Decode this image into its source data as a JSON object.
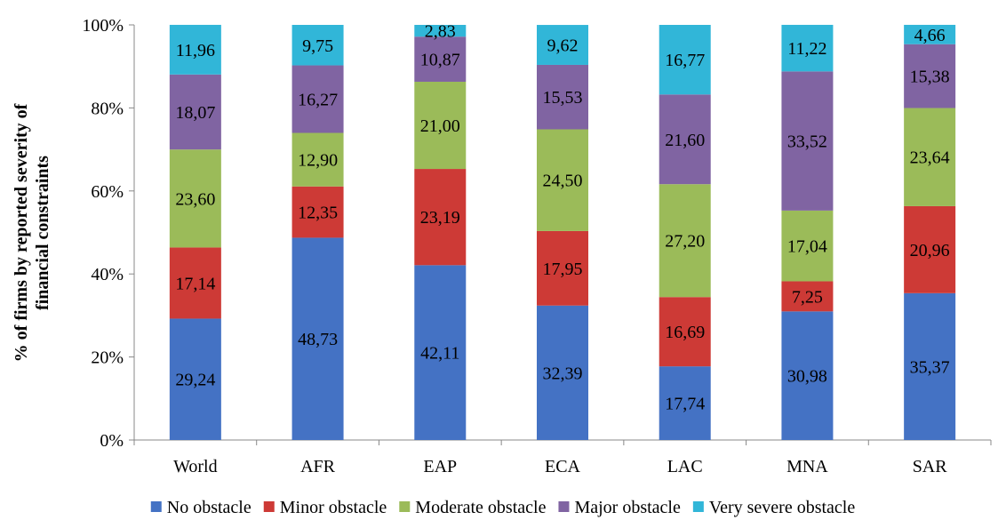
{
  "chart_data": {
    "type": "bar",
    "stacked": true,
    "ylabel_lines": [
      "% of firms by reported severity of",
      "financial  constraints"
    ],
    "xlabel": "",
    "ylim": [
      0,
      100
    ],
    "y_ticks": [
      "0%",
      "20%",
      "40%",
      "60%",
      "80%",
      "100%"
    ],
    "categories": [
      "World",
      "AFR",
      "EAP",
      "ECA",
      "LAC",
      "MNA",
      "SAR"
    ],
    "legend_position": "bottom",
    "series": [
      {
        "name": "No obstacle",
        "color": "#4472C4",
        "values": [
          29.24,
          48.73,
          42.11,
          32.39,
          17.74,
          30.98,
          35.37
        ],
        "labels": [
          "29,24",
          "48,73",
          "42,11",
          "32,39",
          "17,74",
          "30,98",
          "35,37"
        ]
      },
      {
        "name": "Minor obstacle",
        "color": "#CD3A36",
        "values": [
          17.14,
          12.35,
          23.19,
          17.95,
          16.69,
          7.25,
          20.96
        ],
        "labels": [
          "17,14",
          "12,35",
          "23,19",
          "17,95",
          "16,69",
          "7,25",
          "20,96"
        ]
      },
      {
        "name": "Moderate obstacle",
        "color": "#9BBB59",
        "values": [
          23.6,
          12.9,
          21.0,
          24.5,
          27.2,
          17.04,
          23.64
        ],
        "labels": [
          "23,60",
          "12,90",
          "21,00",
          "24,50",
          "27,20",
          "17,04",
          "23,64"
        ]
      },
      {
        "name": "Major obstacle",
        "color": "#8064A2",
        "values": [
          18.07,
          16.27,
          10.87,
          15.53,
          21.6,
          33.52,
          15.38
        ],
        "labels": [
          "18,07",
          "16,27",
          "10,87",
          "15,53",
          "21,60",
          "33,52",
          "15,38"
        ]
      },
      {
        "name": "Very severe obstacle",
        "color": "#31B6D8",
        "values": [
          11.96,
          9.75,
          2.83,
          9.62,
          16.77,
          11.22,
          4.66
        ],
        "labels": [
          "11,96",
          "9,75",
          "2,83",
          "9,62",
          "16,77",
          "11,22",
          "4,66"
        ]
      }
    ]
  }
}
